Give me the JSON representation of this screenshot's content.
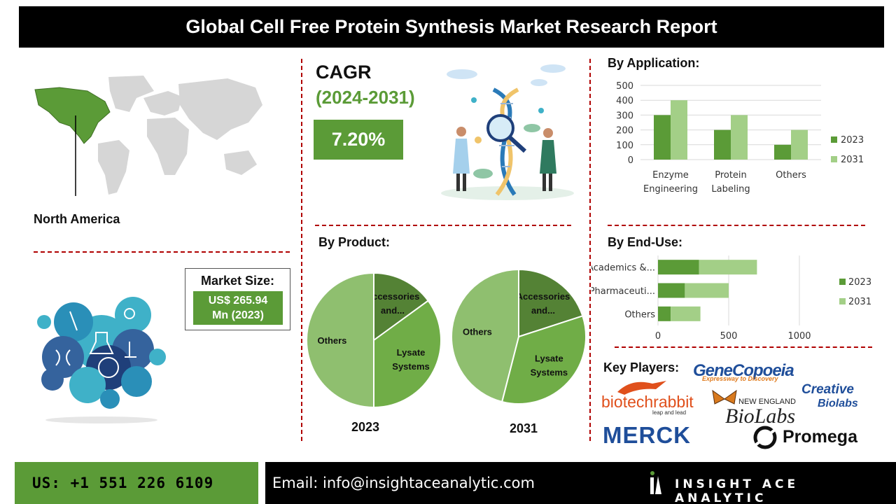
{
  "header": {
    "title": "Global Cell Free Protein Synthesis Market Research Report"
  },
  "region": {
    "label": "North America"
  },
  "cagr": {
    "title": "CAGR",
    "years": "(2024-2031)",
    "value": "7.20%"
  },
  "market_size": {
    "title": "Market Size:",
    "line1": "US$ 265.94",
    "line2": "Mn (2023)"
  },
  "sections": {
    "application": "By Application:",
    "product": "By Product:",
    "enduse": "By  End-Use:",
    "players": "Key Players:"
  },
  "colors": {
    "dark_green": "#5b9b37",
    "light_green": "#a3cf87",
    "pie_dark": "#548235",
    "pie_mid": "#70ad47",
    "pie_light": "#8fbf6f",
    "dash_red": "#b00000"
  },
  "chart_data": [
    {
      "type": "bar",
      "title": "By Application:",
      "categories": [
        [
          "Enzyme",
          "Engineering"
        ],
        [
          "Protein",
          "Labeling"
        ],
        [
          "Others"
        ]
      ],
      "series": [
        {
          "name": "2023",
          "values": [
            300,
            200,
            100
          ],
          "color": "#5b9b37"
        },
        {
          "name": "2031",
          "values": [
            400,
            300,
            200
          ],
          "color": "#a3cf87"
        }
      ],
      "ylim": [
        0,
        500
      ],
      "yticks": [
        0,
        100,
        200,
        300,
        400,
        500
      ],
      "grid": true,
      "legend": "right"
    },
    {
      "type": "pie",
      "title": "By Product:",
      "year": "2023",
      "slices": [
        {
          "label": [
            "Accessories",
            "and..."
          ],
          "value": 15,
          "color": "#548235"
        },
        {
          "label": [
            "Lysate",
            "Systems"
          ],
          "value": 35,
          "color": "#70ad47"
        },
        {
          "label": [
            "Others"
          ],
          "value": 50,
          "color": "#8fbf6f"
        }
      ]
    },
    {
      "type": "pie",
      "title": "By Product:",
      "year": "2031",
      "slices": [
        {
          "label": [
            "Accessories",
            "and..."
          ],
          "value": 20,
          "color": "#548235"
        },
        {
          "label": [
            "Lysate",
            "Systems"
          ],
          "value": 34,
          "color": "#70ad47"
        },
        {
          "label": [
            "Others"
          ],
          "value": 46,
          "color": "#8fbf6f"
        }
      ]
    },
    {
      "type": "bar",
      "orientation": "horizontal",
      "stacked": true,
      "title": "By  End-Use:",
      "categories": [
        "Academics &...",
        "Pharmaceuti...",
        "Others"
      ],
      "series": [
        {
          "name": "2023",
          "values": [
            290,
            190,
            90
          ],
          "color": "#5b9b37"
        },
        {
          "name": "2031",
          "values": [
            410,
            310,
            210
          ],
          "color": "#a3cf87"
        }
      ],
      "xlim": [
        0,
        1000
      ],
      "xticks": [
        0,
        500,
        1000
      ],
      "grid": true,
      "legend": "right"
    }
  ],
  "players": [
    "GeneCopoeia",
    "Expressway to Discovery",
    "biotechrabbit",
    "leap and lead",
    "NEW ENGLAND",
    "BioLabs",
    "Creative",
    "Biolabs",
    "MERCK",
    "Promega"
  ],
  "footer": {
    "phone": "US: +1 551 226 6109",
    "email": "Email: info@insightaceanalytic.com",
    "brand": "INSIGHT ACE ANALYTIC"
  }
}
